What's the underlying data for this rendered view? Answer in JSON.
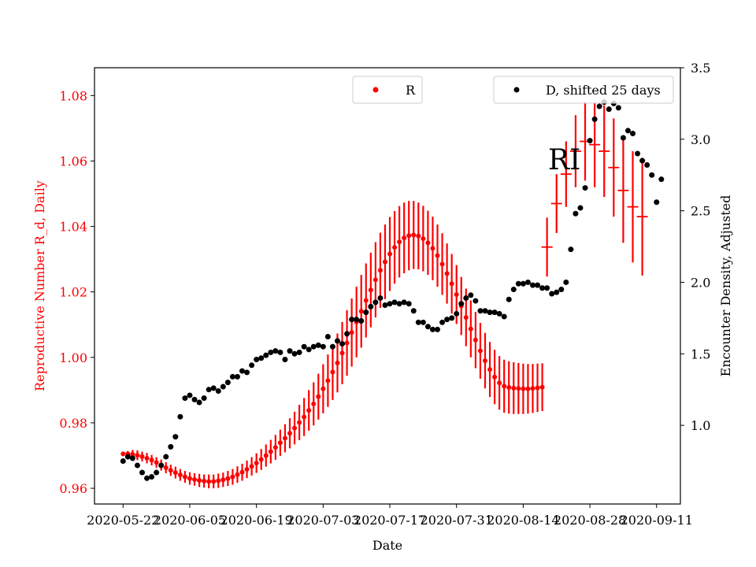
{
  "chart_data": {
    "type": "scatter",
    "xlabel": "Date",
    "ylabel_left": "Reproductive Number R_d, Daily",
    "ylabel_right": "Encounter Density, Adjusted",
    "annotation": "RI",
    "x_ticks": [
      "2020-05-22",
      "2020-06-05",
      "2020-06-19",
      "2020-07-03",
      "2020-07-17",
      "2020-07-31",
      "2020-08-14",
      "2020-08-28",
      "2020-09-11"
    ],
    "y_left_ticks": [
      "0.96",
      "0.98",
      "1.00",
      "1.02",
      "1.04",
      "1.06",
      "1.08"
    ],
    "y_right_ticks": [
      "1.0",
      "1.5",
      "2.0",
      "2.5",
      "3.0",
      "3.5"
    ],
    "ylim_left": [
      0.9552,
      1.0885
    ],
    "ylim_right": [
      0.45,
      3.5
    ],
    "xlim": [
      "2020-05-16",
      "2020-09-16"
    ],
    "legends": [
      {
        "label": "R",
        "color": "#ff0000"
      },
      {
        "label": "D, shifted 25 days",
        "color": "#000000"
      }
    ],
    "series": [
      {
        "name": "R",
        "axis": "left",
        "color": "#ff0000",
        "x_start": "2020-05-22",
        "x_end": "2020-08-18",
        "values": [
          0.9705,
          0.9705,
          0.9704,
          0.9701,
          0.9697,
          0.9692,
          0.9686,
          0.9679,
          0.9671,
          0.9663,
          0.9655,
          0.9648,
          0.9641,
          0.9635,
          0.963,
          0.9627,
          0.9624,
          0.9622,
          0.9621,
          0.9621,
          0.9623,
          0.9626,
          0.963,
          0.9635,
          0.9642,
          0.9649,
          0.9658,
          0.9667,
          0.9677,
          0.9688,
          0.97,
          0.9712,
          0.9725,
          0.9739,
          0.9753,
          0.9768,
          0.9784,
          0.9801,
          0.9818,
          0.9838,
          0.9858,
          0.988,
          0.9904,
          0.9929,
          0.9955,
          0.9983,
          1.0013,
          1.0044,
          1.0076,
          1.0108,
          1.0141,
          1.0174,
          1.0206,
          1.0237,
          1.0266,
          1.0292,
          1.0316,
          1.0336,
          1.0353,
          1.0365,
          1.0372,
          1.0374,
          1.0371,
          1.0363,
          1.035,
          1.0333,
          1.0311,
          1.0285,
          1.0256,
          1.0225,
          1.0192,
          1.0157,
          1.0122,
          1.0087,
          1.0053,
          1.002,
          0.999,
          0.9963,
          0.994,
          0.9922,
          0.9912,
          0.9908,
          0.9906,
          0.9905,
          0.9904,
          0.9904,
          0.9905,
          0.9907,
          0.9909
        ],
        "error_half_width": [
          0.0006,
          0.0009,
          0.0013,
          0.0015,
          0.0015,
          0.0016,
          0.0016,
          0.0016,
          0.0017,
          0.0017,
          0.0017,
          0.0018,
          0.0018,
          0.0018,
          0.0019,
          0.0019,
          0.002,
          0.002,
          0.0021,
          0.0021,
          0.0022,
          0.0022,
          0.0023,
          0.0024,
          0.0025,
          0.0026,
          0.0027,
          0.0028,
          0.003,
          0.0032,
          0.0034,
          0.0036,
          0.0038,
          0.004,
          0.0043,
          0.0046,
          0.005,
          0.0054,
          0.0058,
          0.0062,
          0.0066,
          0.007,
          0.0075,
          0.008,
          0.0085,
          0.009,
          0.0095,
          0.01,
          0.0104,
          0.0108,
          0.0111,
          0.0113,
          0.0114,
          0.0115,
          0.0115,
          0.0114,
          0.0113,
          0.0111,
          0.0109,
          0.0108,
          0.0106,
          0.0104,
          0.0102,
          0.01,
          0.0098,
          0.0097,
          0.0095,
          0.0094,
          0.0092,
          0.0091,
          0.009,
          0.0089,
          0.0088,
          0.0087,
          0.0086,
          0.0085,
          0.0085,
          0.0084,
          0.0083,
          0.0082,
          0.0081,
          0.008,
          0.0079,
          0.0078,
          0.0077,
          0.0076,
          0.0075,
          0.0074,
          0.0073
        ]
      },
      {
        "name": "R",
        "axis": "left",
        "color": "#ff0000",
        "x_start": "2020-08-19",
        "x_end": "2020-09-09",
        "points": [
          {
            "x": "2020-08-19",
            "y": 1.0337,
            "e": 0.009
          },
          {
            "x": "2020-08-21",
            "y": 1.047,
            "e": 0.009
          },
          {
            "x": "2020-08-23",
            "y": 1.056,
            "e": 0.01
          },
          {
            "x": "2020-08-25",
            "y": 1.063,
            "e": 0.011
          },
          {
            "x": "2020-08-27",
            "y": 1.066,
            "e": 0.012
          },
          {
            "x": "2020-08-29",
            "y": 1.065,
            "e": 0.013
          },
          {
            "x": "2020-08-31",
            "y": 1.063,
            "e": 0.014
          },
          {
            "x": "2020-09-02",
            "y": 1.058,
            "e": 0.015
          },
          {
            "x": "2020-09-04",
            "y": 1.051,
            "e": 0.016
          },
          {
            "x": "2020-09-06",
            "y": 1.046,
            "e": 0.017
          },
          {
            "x": "2020-09-08",
            "y": 1.043,
            "e": 0.018
          }
        ]
      },
      {
        "name": "D, shifted 25 days",
        "axis": "right",
        "color": "#000000",
        "x_start": "2020-05-22",
        "x_end": "2020-09-09",
        "values": [
          0.75,
          0.78,
          0.77,
          0.72,
          0.67,
          0.63,
          0.64,
          0.67,
          0.72,
          0.78,
          0.85,
          0.92,
          1.06,
          1.19,
          1.21,
          1.18,
          1.16,
          1.19,
          1.25,
          1.26,
          1.24,
          1.27,
          1.3,
          1.34,
          1.34,
          1.38,
          1.37,
          1.42,
          1.46,
          1.47,
          1.49,
          1.51,
          1.52,
          1.51,
          1.46,
          1.52,
          1.5,
          1.51,
          1.55,
          1.53,
          1.55,
          1.56,
          1.55,
          1.62,
          1.55,
          1.59,
          1.57,
          1.64,
          1.74,
          1.74,
          1.73,
          1.79,
          1.83,
          1.86,
          1.89,
          1.84,
          1.85,
          1.86,
          1.85,
          1.86,
          1.85,
          1.8,
          1.72,
          1.72,
          1.69,
          1.67,
          1.67,
          1.72,
          1.74,
          1.75,
          1.78,
          1.85,
          1.89,
          1.91,
          1.87,
          1.8,
          1.8,
          1.79,
          1.79,
          1.78,
          1.76,
          1.88,
          1.95,
          1.99,
          1.99,
          2.0,
          1.98,
          1.98,
          1.96,
          1.96,
          1.92,
          1.93,
          1.95,
          2.0,
          2.23,
          2.48,
          2.52,
          2.66,
          2.99,
          3.14,
          3.23,
          3.26,
          3.21,
          3.25,
          3.22,
          3.01,
          3.06,
          3.04,
          2.9,
          2.85,
          2.82,
          2.75,
          2.56,
          2.72
        ]
      }
    ]
  }
}
